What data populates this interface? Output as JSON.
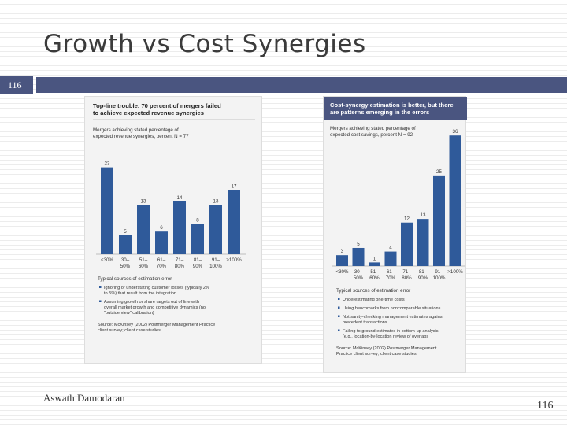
{
  "slide": {
    "title": "Growth vs Cost Synergies",
    "section_number": "116",
    "author": "Aswath Damodaran",
    "page_number": "116"
  },
  "colors": {
    "accent": "#4a5580",
    "bar": "#2f5a9a"
  },
  "chart_data": [
    {
      "type": "bar",
      "title": "Top-line trouble: 70 percent of mergers failed to achieve expected revenue synergies",
      "subtitle": "Mergers achieving stated percentage of expected revenue synergies, percent N = 77",
      "categories": [
        "<30%",
        "30–50%",
        "51–60%",
        "61–70%",
        "71–80%",
        "81–90%",
        "91–100%",
        ">100%"
      ],
      "category_lines": [
        [
          "<30%"
        ],
        [
          "30–",
          "50%"
        ],
        [
          "51–",
          "60%"
        ],
        [
          "61–",
          "70%"
        ],
        [
          "71–",
          "80%"
        ],
        [
          "81–",
          "90%"
        ],
        [
          "91–",
          "100%"
        ],
        [
          ">100%"
        ]
      ],
      "values": [
        23,
        5,
        13,
        6,
        14,
        8,
        13,
        17
      ],
      "ylim": [
        0,
        25
      ],
      "notes_title": "Typical sources of estimation error",
      "notes": [
        "Ignoring or understating customer losses (typically 2% to 5%) that result from the integration",
        "Assuming growth or share targets out of line with overall market growth and competitive dynamics (no \"outside view\" calibration)"
      ],
      "source": "Source: McKinsey (2002) Postmerger Management Practice client survey; client case studies"
    },
    {
      "type": "bar",
      "title": "Cost-synergy estimation is better, but there are patterns emerging in the errors",
      "subtitle": "Mergers achieving stated percentage of expected cost savings, percent N = 92",
      "categories": [
        "<30%",
        "30–50%",
        "51–60%",
        "61–70%",
        "71–80%",
        "81–90%",
        "91–100%",
        ">100%"
      ],
      "category_lines": [
        [
          "<30%"
        ],
        [
          "30–",
          "50%"
        ],
        [
          "51–",
          "60%"
        ],
        [
          "61–",
          "70%"
        ],
        [
          "71–",
          "80%"
        ],
        [
          "81–",
          "90%"
        ],
        [
          "91–",
          "100%"
        ],
        [
          ">100%"
        ]
      ],
      "values": [
        3,
        5,
        1,
        4,
        12,
        13,
        25,
        36
      ],
      "ylim": [
        0,
        38
      ],
      "notes_title": "Typical sources of estimation error",
      "notes": [
        "Underestimating one-time costs",
        "Using benchmarks from noncomparable situations",
        "Not sanity-checking management estimates against precedent transactions",
        "Failing to ground estimates in bottom-up analysis (e.g., location-by-location review of overlaps"
      ],
      "source": "Source: McKinsey (2002) Postmerger Management Practice client survey; client case studies"
    }
  ]
}
